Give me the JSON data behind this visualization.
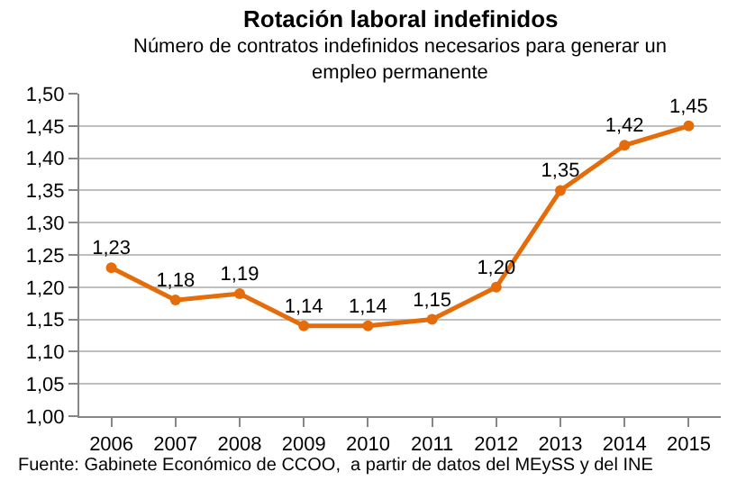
{
  "chart_data": {
    "type": "line",
    "title": "Rotación laboral indefinidos",
    "subtitle": "Número de contratos indefinidos necesarios para generar un empleo permanente",
    "categories": [
      "2006",
      "2007",
      "2008",
      "2009",
      "2010",
      "2011",
      "2012",
      "2013",
      "2014",
      "2015"
    ],
    "series": [
      {
        "color": "#e46c0a",
        "values": [
          1.23,
          1.18,
          1.19,
          1.14,
          1.14,
          1.15,
          1.2,
          1.35,
          1.42,
          1.45
        ],
        "value_labels": [
          "1,23",
          "1,18",
          "1,19",
          "1,14",
          "1,14",
          "1,15",
          "1,20",
          "1,35",
          "1,42",
          "1,45"
        ]
      }
    ],
    "ylim": [
      1.0,
      1.5
    ],
    "yticks": [
      {
        "value": 1.0,
        "label": "1,00"
      },
      {
        "value": 1.05,
        "label": "1,05"
      },
      {
        "value": 1.1,
        "label": "1,10"
      },
      {
        "value": 1.15,
        "label": "1,15"
      },
      {
        "value": 1.2,
        "label": "1,20"
      },
      {
        "value": 1.25,
        "label": "1,25"
      },
      {
        "value": 1.3,
        "label": "1,30"
      },
      {
        "value": 1.35,
        "label": "1,35"
      },
      {
        "value": 1.4,
        "label": "1,40"
      },
      {
        "value": 1.45,
        "label": "1,45"
      },
      {
        "value": 1.5,
        "label": "1,50"
      }
    ],
    "grid": "y",
    "marker": "circle",
    "line_style": "solid",
    "legend": false,
    "annotations": [
      "Fuente: Gabinete Económico de CCOO,  a partir de datos del MEySS y del INE"
    ]
  }
}
